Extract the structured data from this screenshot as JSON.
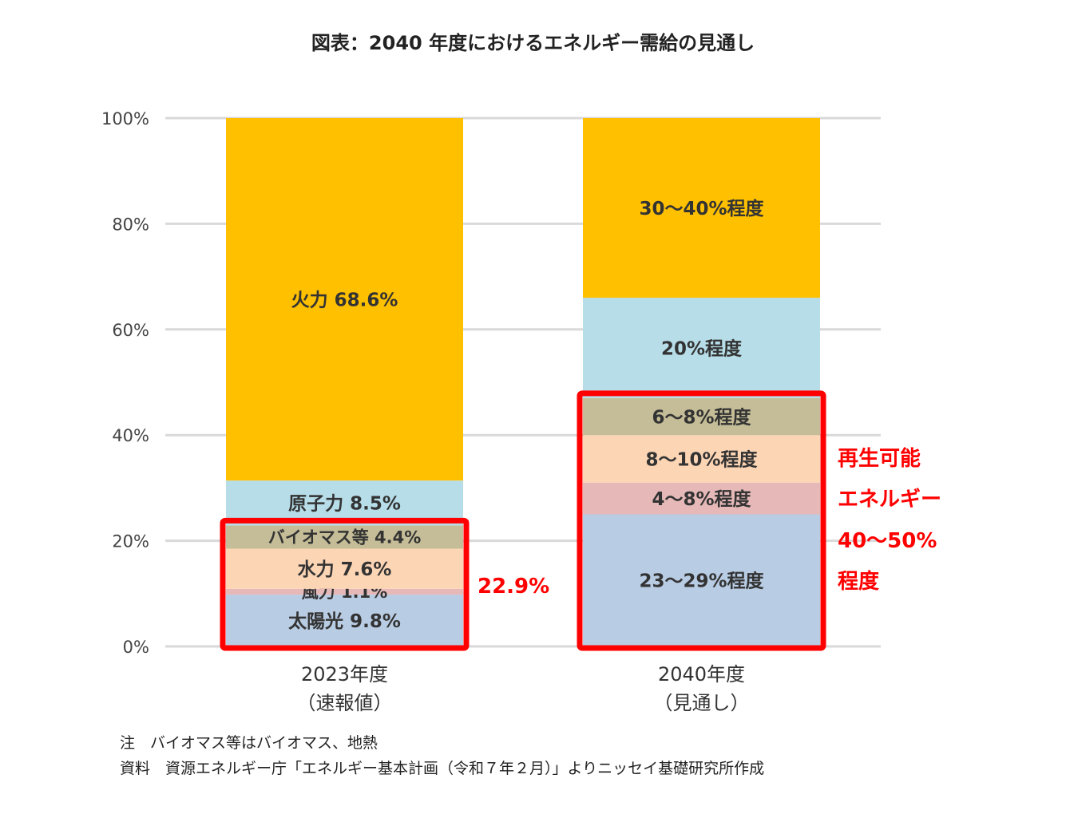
{
  "chart_data": {
    "type": "bar",
    "stacked": true,
    "title": "図表：2040 年度におけるエネルギー需給の見通し",
    "ylim": [
      0,
      100
    ],
    "yticks": [
      "0%",
      "20%",
      "40%",
      "60%",
      "80%",
      "100%"
    ],
    "grid": true,
    "bars": [
      {
        "label_lines": [
          "2023年度",
          "（速報値）"
        ],
        "segments": [
          {
            "value": 9.8,
            "label": "太陽光 9.8%",
            "color": "#b8cce4"
          },
          {
            "value": 1.1,
            "label": "風力 1.1%",
            "color": "#e6b9b8"
          },
          {
            "value": 7.6,
            "label": "水力 7.6%",
            "color": "#fcd5b5"
          },
          {
            "value": 4.4,
            "label": "バイオマス等 4.4%",
            "color": "#c4bd97"
          },
          {
            "value": 8.5,
            "label": "原子力 8.5%",
            "color": "#b7dde8"
          },
          {
            "value": 68.6,
            "label": "火力 68.6%",
            "color": "#ffc000"
          }
        ],
        "highlight": {
          "label": "22.9%",
          "top_value": 22.9
        }
      },
      {
        "label_lines": [
          "2040年度",
          "（見通し）"
        ],
        "segments": [
          {
            "value": 25,
            "label": "23～29%程度",
            "color": "#b8cce4"
          },
          {
            "value": 6,
            "label": "4～8%程度",
            "color": "#e6b9b8"
          },
          {
            "value": 9,
            "label": "8～10%程度",
            "color": "#fcd5b5"
          },
          {
            "value": 7,
            "label": "6～8%程度",
            "color": "#c4bd97"
          },
          {
            "value": 19,
            "label": "20%程度",
            "color": "#b7dde8"
          },
          {
            "value": 34,
            "label": "30～40%程度",
            "color": "#ffc000"
          }
        ],
        "highlight": {
          "label_lines": [
            "再生可能",
            "エネルギー",
            "40～50%",
            "程度"
          ],
          "top_value": 47
        }
      }
    ]
  },
  "colors": {
    "highlight": "#ff0000",
    "grid": "#d9d9d9"
  },
  "notes": {
    "line1": "注　バイオマス等はバイオマス、地熱",
    "line2": "資料　資源エネルギー庁「エネルギー基本計画（令和７年２月）」よりニッセイ基礎研究所作成"
  }
}
